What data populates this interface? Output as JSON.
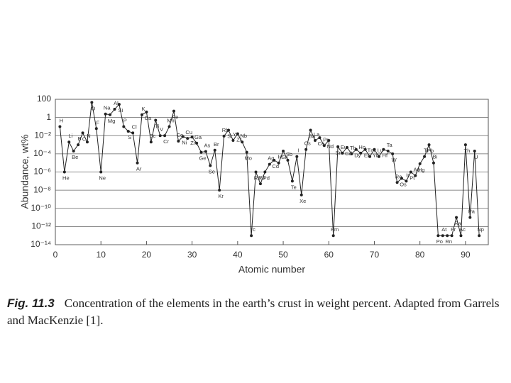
{
  "chart_data": {
    "type": "line",
    "y_label": "Abundance, wt%",
    "x_label": "Atomic number",
    "caption_label": "Fig. 11.3",
    "caption": "Concentration of the elements in the earth’s crust in weight percent. Adapted from Garrels and MacKenzie [1].",
    "log_y": true,
    "grid": true,
    "color": "#222222",
    "xlim": [
      0,
      95
    ],
    "xticks": [
      0,
      10,
      20,
      30,
      40,
      50,
      60,
      70,
      80,
      90
    ],
    "ylim": [
      1e-14,
      100
    ],
    "yticks": [
      100,
      1,
      {
        "value": 0.01,
        "label": "10⁻²"
      },
      {
        "value": 0.0001,
        "label": "10⁻⁴"
      },
      {
        "value": 1e-06,
        "label": "10⁻⁶"
      },
      {
        "value": 1e-08,
        "label": "10⁻⁸"
      },
      {
        "value": 1e-10,
        "label": "10⁻¹⁰"
      },
      {
        "value": 1e-12,
        "label": "10⁻¹²"
      },
      {
        "value": 1e-14,
        "label": "10⁻¹⁴"
      }
    ],
    "series": [
      {
        "x": [
          1,
          2,
          3,
          4,
          5,
          6,
          7,
          8,
          9,
          10,
          11,
          12,
          13,
          14,
          15,
          16,
          17,
          18,
          19,
          20,
          21,
          22,
          23,
          24,
          25,
          26,
          27,
          28,
          29,
          30,
          31,
          32,
          33,
          34,
          35,
          36,
          37,
          38,
          39,
          40,
          41,
          42,
          43,
          44,
          45,
          46,
          47,
          48,
          49,
          50,
          51,
          52,
          53,
          54,
          55,
          56,
          57,
          58,
          59,
          60,
          61,
          62,
          63,
          64,
          65,
          66,
          67,
          68,
          69,
          70,
          71,
          72,
          73,
          74,
          75,
          76,
          77,
          78,
          79,
          80,
          81,
          82,
          83,
          84,
          85,
          86,
          87,
          88,
          89,
          90,
          91,
          92,
          93
        ],
        "values": [
          0.1,
          1e-06,
          0.002,
          0.0002,
          0.001,
          0.02,
          0.002,
          46,
          0.06,
          1e-06,
          2.4,
          2,
          8,
          28,
          0.1,
          0.03,
          0.02,
          1e-05,
          2,
          4,
          0.002,
          0.5,
          0.01,
          0.01,
          0.1,
          5,
          0.0025,
          0.008,
          0.005,
          0.007,
          0.0015,
          0.00015,
          0.00018,
          5e-06,
          0.00025,
          1e-08,
          0.009,
          0.04,
          0.003,
          0.016,
          0.002,
          0.00015,
          1e-13,
          1e-06,
          5e-08,
          1e-06,
          7e-06,
          2e-05,
          1e-05,
          0.0002,
          2e-05,
          1e-07,
          5e-05,
          3e-09,
          0.0003,
          0.04,
          0.003,
          0.006,
          0.0008,
          0.003,
          1e-13,
          0.0006,
          0.00012,
          0.0005,
          0.0001,
          0.0003,
          0.00012,
          0.0003,
          5e-05,
          0.0003,
          5e-05,
          0.0003,
          0.0002,
          0.0001,
          7e-08,
          2e-07,
          1e-07,
          1e-06,
          4e-07,
          8e-06,
          5e-05,
          0.001,
          1e-05,
          1e-13,
          1e-13,
          1e-13,
          1e-13,
          1e-11,
          1e-13,
          0.001,
          1e-11,
          0.0002,
          1e-13
        ],
        "labels": [
          "H",
          "He",
          "Li",
          "Be",
          "B",
          "C",
          "N",
          "O",
          "F",
          "Ne",
          "Na",
          "Mg",
          "Al",
          "Si",
          "P",
          "S",
          "Cl",
          "Ar",
          "K",
          "Ca",
          "Sc",
          "Ti",
          "V",
          "Cr",
          "Mn",
          "Fe",
          "Co",
          "Ni",
          "Cu",
          "Zn",
          "Ga",
          "Ge",
          "As",
          "Se",
          "Br",
          "Kr",
          "Rb",
          "Sr",
          "Y",
          "Zr",
          "Nb",
          "Mo",
          "Tc",
          "Ru",
          "Rh",
          "Pd",
          "Ag",
          "Cd",
          "In",
          "Sn",
          "Sb",
          "Te",
          "I",
          "Xe",
          "Cs",
          "Ba",
          "La",
          "Ce",
          "Pr",
          "Nd",
          "Pm",
          "Sm",
          "Eu",
          "Gd",
          "Tb",
          "Dy",
          "Ho",
          "Er",
          "Tm",
          "Yb",
          "Lu",
          "Hf",
          "Ta",
          "W",
          "Re",
          "Os",
          "Ir",
          "Pt",
          "Au",
          "Hg",
          "Tl",
          "Pb",
          "Bi",
          "Po",
          "At",
          "Rn",
          "Fr",
          "Ra",
          "Ac",
          "Th",
          "Pa",
          "U",
          "Np"
        ]
      }
    ]
  }
}
